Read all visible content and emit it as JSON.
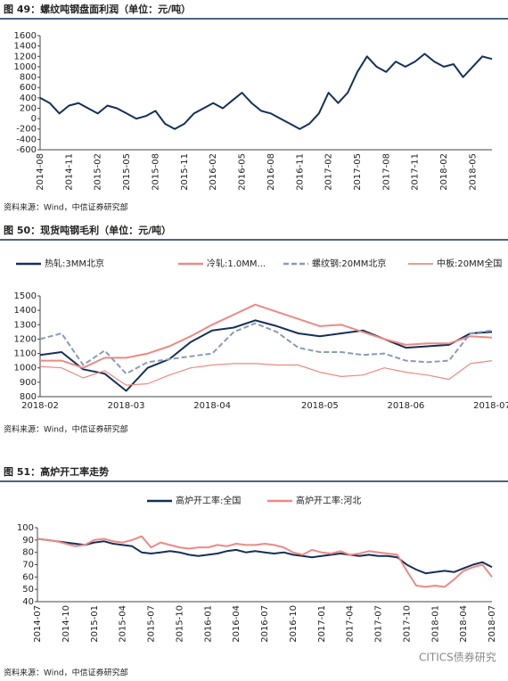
{
  "chart_data": [
    {
      "type": "line",
      "title": "图 49：螺纹吨钢盘面利润（单位：元/吨）",
      "source": "资料来源：Wind，中信证券研究部",
      "categories": [
        "2014-08",
        null,
        null,
        "2014-11",
        null,
        null,
        "2015-02",
        null,
        null,
        "2015-05",
        null,
        null,
        "2015-08",
        null,
        null,
        "2015-11",
        null,
        null,
        "2016-02",
        null,
        null,
        "2016-05",
        null,
        null,
        "2016-08",
        null,
        null,
        "2016-11",
        null,
        null,
        "2017-02",
        null,
        null,
        "2017-05",
        null,
        null,
        "2017-08",
        null,
        null,
        "2017-11",
        null,
        null,
        "2018-02",
        null,
        null,
        "2018-05",
        null,
        null
      ],
      "series": [
        {
          "color": "#14305a",
          "line_style": "solid",
          "values": [
            400,
            300,
            100,
            250,
            300,
            200,
            100,
            250,
            200,
            100,
            0,
            50,
            150,
            -100,
            -200,
            -100,
            100,
            200,
            300,
            200,
            350,
            500,
            300,
            150,
            100,
            0,
            -100,
            -200,
            -100,
            100,
            500,
            300,
            500,
            900,
            1200,
            1000,
            900,
            1100,
            1000,
            1100,
            1250,
            1100,
            1000,
            1050,
            800,
            1000,
            1200,
            1150
          ]
        }
      ],
      "ylim": [
        -600,
        1600
      ],
      "yticks": [
        -600,
        -400,
        -200,
        0,
        200,
        400,
        600,
        800,
        1000,
        1200,
        1400,
        1600
      ]
    },
    {
      "type": "line",
      "title": "图 50：现货吨钢毛利（单位：元/吨）",
      "source": "资料来源：Wind，中信证券研究部",
      "categories": [
        "2018-02",
        null,
        null,
        null,
        "2018-03",
        null,
        null,
        null,
        "2018-04",
        null,
        null,
        null,
        null,
        "2018-05",
        null,
        null,
        null,
        "2018-06",
        null,
        null,
        null,
        "2018-07"
      ],
      "series": [
        {
          "name": "热轧:3MM北京",
          "color": "#14305a",
          "line_style": "solid",
          "values": [
            1090,
            1110,
            990,
            960,
            840,
            1000,
            1060,
            1180,
            1260,
            1280,
            1330,
            1290,
            1240,
            1220,
            1240,
            1260,
            1200,
            1140,
            1150,
            1160,
            1240,
            1250
          ]
        },
        {
          "name": "冷轧:1.0MM...",
          "color": "#ec8a84",
          "line_style": "solid",
          "values": [
            1050,
            1050,
            1000,
            1070,
            1070,
            1100,
            1150,
            1220,
            1300,
            1370,
            1440,
            1390,
            1340,
            1290,
            1300,
            1250,
            1200,
            1160,
            1170,
            1170,
            1220,
            1210
          ]
        },
        {
          "name": "螺纹钢:20MM北京",
          "color": "#8a9bb8",
          "line_style": "dashed",
          "values": [
            1200,
            1240,
            1020,
            1120,
            960,
            1040,
            1060,
            1080,
            1100,
            1250,
            1310,
            1250,
            1140,
            1110,
            1110,
            1090,
            1100,
            1050,
            1040,
            1050,
            1240,
            1260
          ]
        },
        {
          "name": "中板:20MM全国",
          "color": "#ec8a84",
          "line_style": "thin",
          "values": [
            1010,
            1000,
            930,
            980,
            880,
            890,
            950,
            1000,
            1020,
            1030,
            1030,
            1020,
            1020,
            970,
            940,
            950,
            1000,
            970,
            950,
            920,
            1030,
            1050
          ]
        }
      ],
      "ylim": [
        800,
        1500
      ],
      "yticks": [
        800,
        900,
        1000,
        1100,
        1200,
        1300,
        1400,
        1500
      ]
    },
    {
      "type": "line",
      "title": "图 51：高炉开工率走势",
      "source": "资料来源：Wind，中信证券研究部",
      "categories": [
        "2014-07",
        null,
        null,
        "2014-10",
        null,
        null,
        "2015-01",
        null,
        null,
        "2015-04",
        null,
        null,
        "2015-07",
        null,
        null,
        "2015-10",
        null,
        null,
        "2016-01",
        null,
        null,
        "2016-04",
        null,
        null,
        "2016-07",
        null,
        null,
        "2016-10",
        null,
        null,
        "2017-01",
        null,
        null,
        "2017-04",
        null,
        null,
        "2017-07",
        null,
        null,
        "2017-10",
        null,
        null,
        "2018-01",
        null,
        null,
        "2018-04",
        null,
        null,
        "2018-07"
      ],
      "series": [
        {
          "name": "高炉开工率:全国",
          "color": "#14305a",
          "line_style": "solid",
          "values": [
            91,
            90,
            89,
            88,
            87,
            86,
            88,
            89,
            87,
            86,
            85,
            80,
            79,
            80,
            81,
            80,
            78,
            77,
            78,
            79,
            81,
            82,
            80,
            81,
            80,
            79,
            80,
            78,
            77,
            76,
            77,
            78,
            79,
            78,
            77,
            78,
            77,
            77,
            76,
            70,
            66,
            63,
            64,
            65,
            64,
            67,
            70,
            72,
            68
          ]
        },
        {
          "name": "高炉开工率:河北",
          "color": "#ec8a84",
          "line_style": "solid",
          "values": [
            91,
            90,
            89,
            87,
            85,
            86,
            90,
            91,
            89,
            88,
            90,
            93,
            84,
            88,
            86,
            84,
            83,
            84,
            84,
            86,
            85,
            87,
            86,
            86,
            87,
            86,
            84,
            80,
            78,
            82,
            80,
            79,
            81,
            78,
            79,
            81,
            80,
            79,
            78,
            65,
            53,
            52,
            53,
            52,
            58,
            65,
            68,
            70,
            60
          ]
        }
      ],
      "ylim": [
        40,
        100
      ],
      "yticks": [
        40,
        50,
        60,
        70,
        80,
        90,
        100
      ]
    }
  ],
  "watermark": "CITICS债券研究"
}
